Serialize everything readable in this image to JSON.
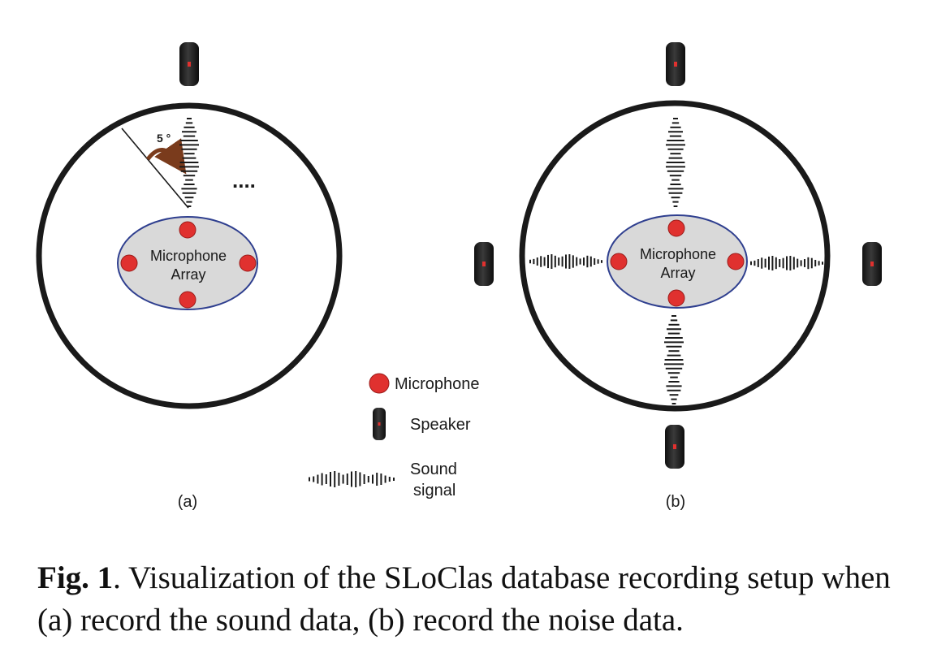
{
  "panels": {
    "a": {
      "label": "(a)",
      "mic_array_label_line1": "Microphone",
      "mic_array_label_line2": "Array",
      "angle_label": "5 °",
      "ellipsis": "...."
    },
    "b": {
      "label": "(b)",
      "mic_array_label_line1": "Microphone",
      "mic_array_label_line2": "Array"
    }
  },
  "legend": {
    "microphone": "Microphone",
    "speaker": "Speaker",
    "sound_line1": "Sound",
    "sound_line2": "signal"
  },
  "caption": {
    "fig_label": "Fig. 1",
    "text": ". Visualization of the SLoClas database recording setup when (a) record the sound data, (b) record the noise data."
  },
  "colors": {
    "microphone": "#e0312f",
    "array_fill": "#d9d9d9",
    "array_stroke": "#2f3f8f",
    "ring": "#1a1a1a",
    "arrow": "#7a3b1c",
    "speaker_body": "#1e1e1e",
    "speaker_accent": "#e0312f"
  }
}
